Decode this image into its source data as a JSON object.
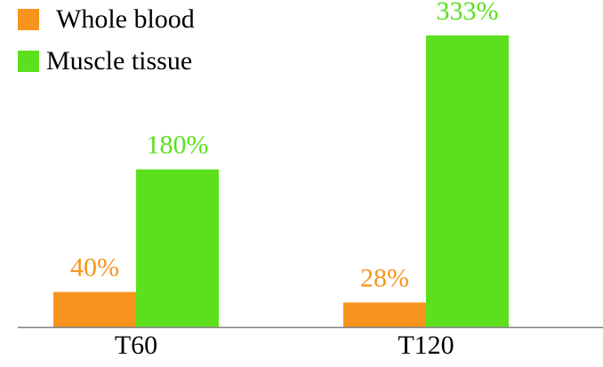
{
  "chart_data": {
    "type": "bar",
    "categories": [
      "T60",
      "T120"
    ],
    "series": [
      {
        "name": "Whole blood",
        "values": [
          40,
          28
        ],
        "labels": [
          "40%",
          "28%"
        ],
        "color": "#f7941d"
      },
      {
        "name": "Muscle tissue",
        "values": [
          180,
          333
        ],
        "labels": [
          "180%",
          "333%"
        ],
        "color": "#5ce01e"
      }
    ],
    "title": "",
    "xlabel": "",
    "ylabel": "",
    "ylim": [
      0,
      345
    ],
    "grid": false,
    "legend": "top-left",
    "axis_color": "#808080"
  }
}
